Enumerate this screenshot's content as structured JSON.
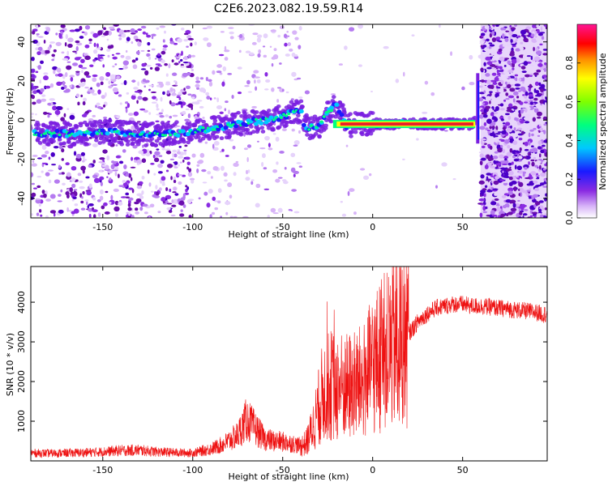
{
  "title": "C2E6.2023.082.19.59.R14",
  "colors": {
    "snr_line": "#ee1111",
    "track_core": "#e8202a",
    "scatter": "#8a2be2",
    "scatter_light": "#d7b8f6"
  },
  "chart_data": [
    {
      "type": "heatmap",
      "title": "C2E6.2023.082.19.59.R14",
      "xlabel": "Height of straight line (km)",
      "ylabel": "Frequency (Hz)",
      "xlim": [
        -190,
        97
      ],
      "ylim": [
        -50,
        49
      ],
      "xticks": [
        -150,
        -100,
        -50,
        0,
        50
      ],
      "yticks": [
        -40,
        -20,
        0,
        20,
        40
      ],
      "grid": false,
      "colorbar": {
        "label": "Normalized spectral amplitude",
        "range": [
          0,
          1
        ],
        "ticks": [
          "0.0",
          "0.2",
          "0.4",
          "0.6",
          "0.8"
        ],
        "colormap": [
          "#ffffff",
          "#d8b4f8",
          "#8a2be2",
          "#1a1aff",
          "#00c8ff",
          "#00ff7f",
          "#7fff00",
          "#ffff00",
          "#ff8c00",
          "#ff0000",
          "#ff1493"
        ]
      },
      "ridge": {
        "x": [
          -188,
          -170,
          -150,
          -130,
          -110,
          -95,
          -80,
          -70,
          -60,
          -50,
          -44,
          -40,
          -38,
          -36,
          -30,
          -25,
          -20,
          -15,
          -10,
          0,
          10,
          20,
          30,
          40,
          50,
          55,
          57,
          58,
          60
        ],
        "y": [
          -7,
          -7,
          -6,
          -7,
          -7,
          -5,
          -3,
          -1,
          0,
          2,
          4,
          5,
          -3,
          -4,
          -3,
          4,
          8,
          -3,
          -2,
          -2,
          -2,
          -2,
          -2,
          -2,
          -2,
          -2,
          -1,
          -6,
          20
        ]
      }
    },
    {
      "type": "line",
      "xlabel": "Height of straight line (km)",
      "ylabel": "SNR (10 * v/v)",
      "xlim": [
        -190,
        97
      ],
      "ylim": [
        0,
        4900
      ],
      "xticks": [
        -150,
        -100,
        -50,
        0,
        50
      ],
      "yticks": [
        1000,
        2000,
        3000,
        4000
      ],
      "grid": false,
      "series": [
        {
          "envelope_x": [
            -190,
            -180,
            -170,
            -160,
            -150,
            -140,
            -130,
            -120,
            -110,
            -100,
            -95,
            -90,
            -85,
            -80,
            -75,
            -72,
            -70,
            -68,
            -65,
            -62,
            -60,
            -55,
            -50,
            -45,
            -40,
            -37,
            -35,
            -33,
            -30,
            -28,
            -25,
            -20,
            -15,
            -10,
            -5,
            0,
            5,
            10,
            15,
            20,
            25,
            30,
            35,
            40,
            45,
            50,
            55,
            60,
            65,
            70,
            75,
            80,
            85,
            90,
            95,
            97
          ],
          "envelope_y": [
            200,
            190,
            200,
            210,
            230,
            260,
            270,
            230,
            210,
            200,
            250,
            300,
            380,
            500,
            650,
            900,
            1050,
            950,
            800,
            650,
            550,
            500,
            480,
            440,
            380,
            450,
            650,
            900,
            1350,
            1700,
            1900,
            1900,
            1850,
            1900,
            2000,
            2400,
            2650,
            2850,
            3000,
            3200,
            3500,
            3700,
            3850,
            3900,
            3950,
            3950,
            3900,
            3900,
            3880,
            3850,
            3830,
            3800,
            3780,
            3750,
            3700,
            3700
          ]
        }
      ]
    }
  ]
}
